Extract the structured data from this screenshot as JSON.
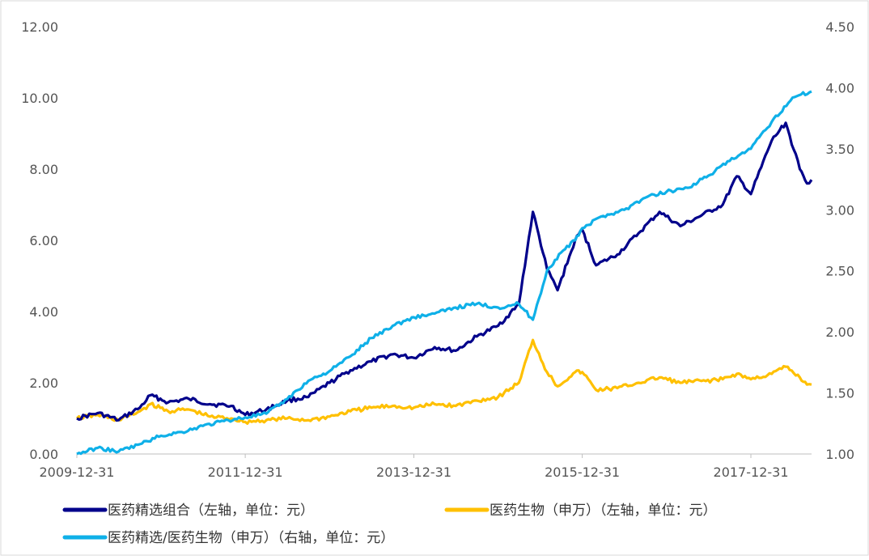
{
  "chart_data": {
    "type": "line",
    "x_ticks": [
      "2009-12-31",
      "2011-12-31",
      "2013-12-31",
      "2015-12-31",
      "2017-12-31"
    ],
    "x_range": [
      "2009-12-31",
      "2018-09-20"
    ],
    "left_axis": {
      "ticks": [
        "0.00",
        "2.00",
        "4.00",
        "6.00",
        "8.00",
        "10.00",
        "12.00"
      ],
      "range": [
        0,
        12
      ]
    },
    "right_axis": {
      "ticks": [
        "1.00",
        "1.50",
        "2.00",
        "2.50",
        "3.00",
        "3.50",
        "4.00",
        "4.50"
      ],
      "range": [
        1.0,
        4.5
      ]
    },
    "grid": false,
    "legend_position": "bottom",
    "series": [
      {
        "name": "医药精选组合（左轴，单位：元）",
        "axis": "left",
        "color": "#00008b",
        "points": [
          [
            "2009-12-31",
            1.0
          ],
          [
            "2010-03-31",
            1.15
          ],
          [
            "2010-06-30",
            0.95
          ],
          [
            "2010-09-30",
            1.3
          ],
          [
            "2010-11-15",
            1.65
          ],
          [
            "2011-01-31",
            1.45
          ],
          [
            "2011-04-30",
            1.55
          ],
          [
            "2011-07-31",
            1.4
          ],
          [
            "2011-10-31",
            1.35
          ],
          [
            "2011-12-31",
            1.1
          ],
          [
            "2012-03-31",
            1.25
          ],
          [
            "2012-06-30",
            1.5
          ],
          [
            "2012-09-30",
            1.6
          ],
          [
            "2012-12-31",
            2.0
          ],
          [
            "2013-03-31",
            2.35
          ],
          [
            "2013-06-30",
            2.6
          ],
          [
            "2013-09-30",
            2.8
          ],
          [
            "2013-12-31",
            2.7
          ],
          [
            "2014-03-31",
            3.0
          ],
          [
            "2014-06-30",
            2.9
          ],
          [
            "2014-09-30",
            3.3
          ],
          [
            "2014-12-31",
            3.6
          ],
          [
            "2015-03-31",
            4.2
          ],
          [
            "2015-05-31",
            6.8
          ],
          [
            "2015-07-31",
            5.2
          ],
          [
            "2015-09-15",
            4.6
          ],
          [
            "2015-11-30",
            6.0
          ],
          [
            "2015-12-31",
            6.3
          ],
          [
            "2016-02-29",
            5.3
          ],
          [
            "2016-05-31",
            5.6
          ],
          [
            "2016-08-31",
            6.2
          ],
          [
            "2016-11-30",
            6.8
          ],
          [
            "2017-02-28",
            6.4
          ],
          [
            "2017-05-31",
            6.7
          ],
          [
            "2017-08-31",
            7.0
          ],
          [
            "2017-10-31",
            7.8
          ],
          [
            "2017-12-31",
            7.3
          ],
          [
            "2018-03-31",
            8.8
          ],
          [
            "2018-05-31",
            9.3
          ],
          [
            "2018-07-31",
            8.0
          ],
          [
            "2018-08-31",
            7.6
          ],
          [
            "2018-09-20",
            7.7
          ]
        ]
      },
      {
        "name": "医药生物（申万）（左轴，单位：元）",
        "axis": "left",
        "color": "#ffc000",
        "points": [
          [
            "2009-12-31",
            1.0
          ],
          [
            "2010-03-31",
            1.1
          ],
          [
            "2010-06-30",
            0.95
          ],
          [
            "2010-09-30",
            1.2
          ],
          [
            "2010-11-15",
            1.4
          ],
          [
            "2011-01-31",
            1.2
          ],
          [
            "2011-04-30",
            1.25
          ],
          [
            "2011-07-31",
            1.05
          ],
          [
            "2011-10-31",
            1.0
          ],
          [
            "2011-12-31",
            0.9
          ],
          [
            "2012-03-31",
            0.95
          ],
          [
            "2012-06-30",
            1.0
          ],
          [
            "2012-09-30",
            0.95
          ],
          [
            "2012-12-31",
            1.05
          ],
          [
            "2013-03-31",
            1.2
          ],
          [
            "2013-06-30",
            1.3
          ],
          [
            "2013-09-30",
            1.35
          ],
          [
            "2013-12-31",
            1.3
          ],
          [
            "2014-03-31",
            1.4
          ],
          [
            "2014-06-30",
            1.35
          ],
          [
            "2014-09-30",
            1.5
          ],
          [
            "2014-12-31",
            1.6
          ],
          [
            "2015-03-31",
            2.0
          ],
          [
            "2015-05-31",
            3.2
          ],
          [
            "2015-07-31",
            2.3
          ],
          [
            "2015-09-15",
            1.9
          ],
          [
            "2015-11-30",
            2.3
          ],
          [
            "2015-12-31",
            2.3
          ],
          [
            "2016-02-29",
            1.8
          ],
          [
            "2016-05-31",
            1.85
          ],
          [
            "2016-08-31",
            2.0
          ],
          [
            "2016-11-30",
            2.15
          ],
          [
            "2017-02-28",
            2.0
          ],
          [
            "2017-05-31",
            2.05
          ],
          [
            "2017-08-31",
            2.1
          ],
          [
            "2017-10-31",
            2.25
          ],
          [
            "2017-12-31",
            2.1
          ],
          [
            "2018-03-31",
            2.25
          ],
          [
            "2018-05-31",
            2.45
          ],
          [
            "2018-07-31",
            2.15
          ],
          [
            "2018-08-31",
            1.95
          ],
          [
            "2018-09-20",
            1.95
          ]
        ]
      },
      {
        "name": "医药精选/医药生物（申万）（右轴，单位：元）",
        "axis": "right",
        "color": "#0fb0e8",
        "points": [
          [
            "2009-12-31",
            1.0
          ],
          [
            "2010-03-31",
            1.05
          ],
          [
            "2010-06-30",
            1.02
          ],
          [
            "2010-09-30",
            1.08
          ],
          [
            "2010-12-31",
            1.15
          ],
          [
            "2011-03-31",
            1.18
          ],
          [
            "2011-06-30",
            1.23
          ],
          [
            "2011-09-30",
            1.27
          ],
          [
            "2011-12-31",
            1.3
          ],
          [
            "2012-03-31",
            1.33
          ],
          [
            "2012-06-30",
            1.45
          ],
          [
            "2012-09-30",
            1.6
          ],
          [
            "2012-12-31",
            1.68
          ],
          [
            "2013-03-31",
            1.8
          ],
          [
            "2013-06-30",
            1.95
          ],
          [
            "2013-09-30",
            2.05
          ],
          [
            "2013-12-31",
            2.12
          ],
          [
            "2014-03-31",
            2.15
          ],
          [
            "2014-06-30",
            2.2
          ],
          [
            "2014-09-30",
            2.23
          ],
          [
            "2014-12-31",
            2.2
          ],
          [
            "2015-03-31",
            2.23
          ],
          [
            "2015-05-31",
            2.1
          ],
          [
            "2015-07-31",
            2.5
          ],
          [
            "2015-09-30",
            2.65
          ],
          [
            "2015-11-30",
            2.75
          ],
          [
            "2015-12-31",
            2.85
          ],
          [
            "2016-03-31",
            2.95
          ],
          [
            "2016-06-30",
            3.0
          ],
          [
            "2016-09-30",
            3.1
          ],
          [
            "2016-12-31",
            3.15
          ],
          [
            "2017-03-31",
            3.18
          ],
          [
            "2017-06-30",
            3.28
          ],
          [
            "2017-09-30",
            3.4
          ],
          [
            "2017-12-31",
            3.5
          ],
          [
            "2018-03-31",
            3.72
          ],
          [
            "2018-06-30",
            3.92
          ],
          [
            "2018-09-20",
            3.97
          ]
        ]
      }
    ]
  },
  "legend": [
    {
      "label": "医药精选组合（左轴，单位：元）",
      "color": "#00008b"
    },
    {
      "label": "医药生物（申万）（左轴，单位：元）",
      "color": "#ffc000"
    },
    {
      "label": "医药精选/医药生物（申万）（右轴，单位：元）",
      "color": "#0fb0e8"
    }
  ]
}
